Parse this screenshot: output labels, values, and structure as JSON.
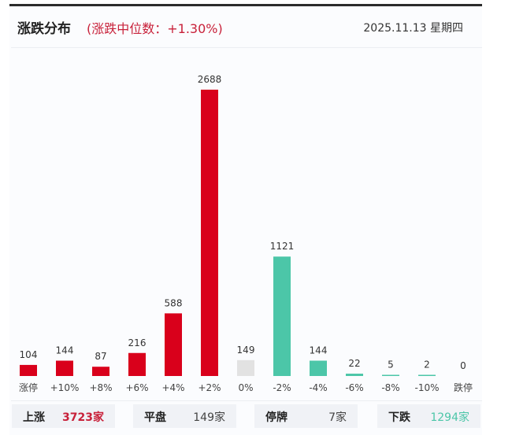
{
  "header": {
    "title": "涨跌分布",
    "subtitle": "(涨跌中位数：+1.30%)",
    "date": "2025.11.13 星期四"
  },
  "colors": {
    "up": "#d9001b",
    "flat": "#e2e2e2",
    "down": "#4cc6a8",
    "accent": "#c8213a"
  },
  "chart_data": {
    "type": "bar",
    "categories": [
      "涨停",
      "+10%",
      "+8%",
      "+6%",
      "+4%",
      "+2%",
      "0%",
      "-2%",
      "-4%",
      "-6%",
      "-8%",
      "-10%",
      "跌停"
    ],
    "values": [
      104,
      144,
      87,
      216,
      588,
      2688,
      149,
      1121,
      144,
      22,
      5,
      2,
      0
    ],
    "bar_colors": [
      "up",
      "up",
      "up",
      "up",
      "up",
      "up",
      "flat",
      "down",
      "down",
      "down",
      "down",
      "down",
      "down"
    ],
    "ylim": [
      0,
      2688
    ],
    "grid": false
  },
  "stats": [
    {
      "label": "上涨",
      "value": "3723家",
      "color": "#c8213a"
    },
    {
      "label": "平盘",
      "value": "149家",
      "color": "#444444"
    },
    {
      "label": "停牌",
      "value": "7家",
      "color": "#444444"
    },
    {
      "label": "下跌",
      "value": "1294家",
      "color": "#4cc6a8"
    }
  ]
}
